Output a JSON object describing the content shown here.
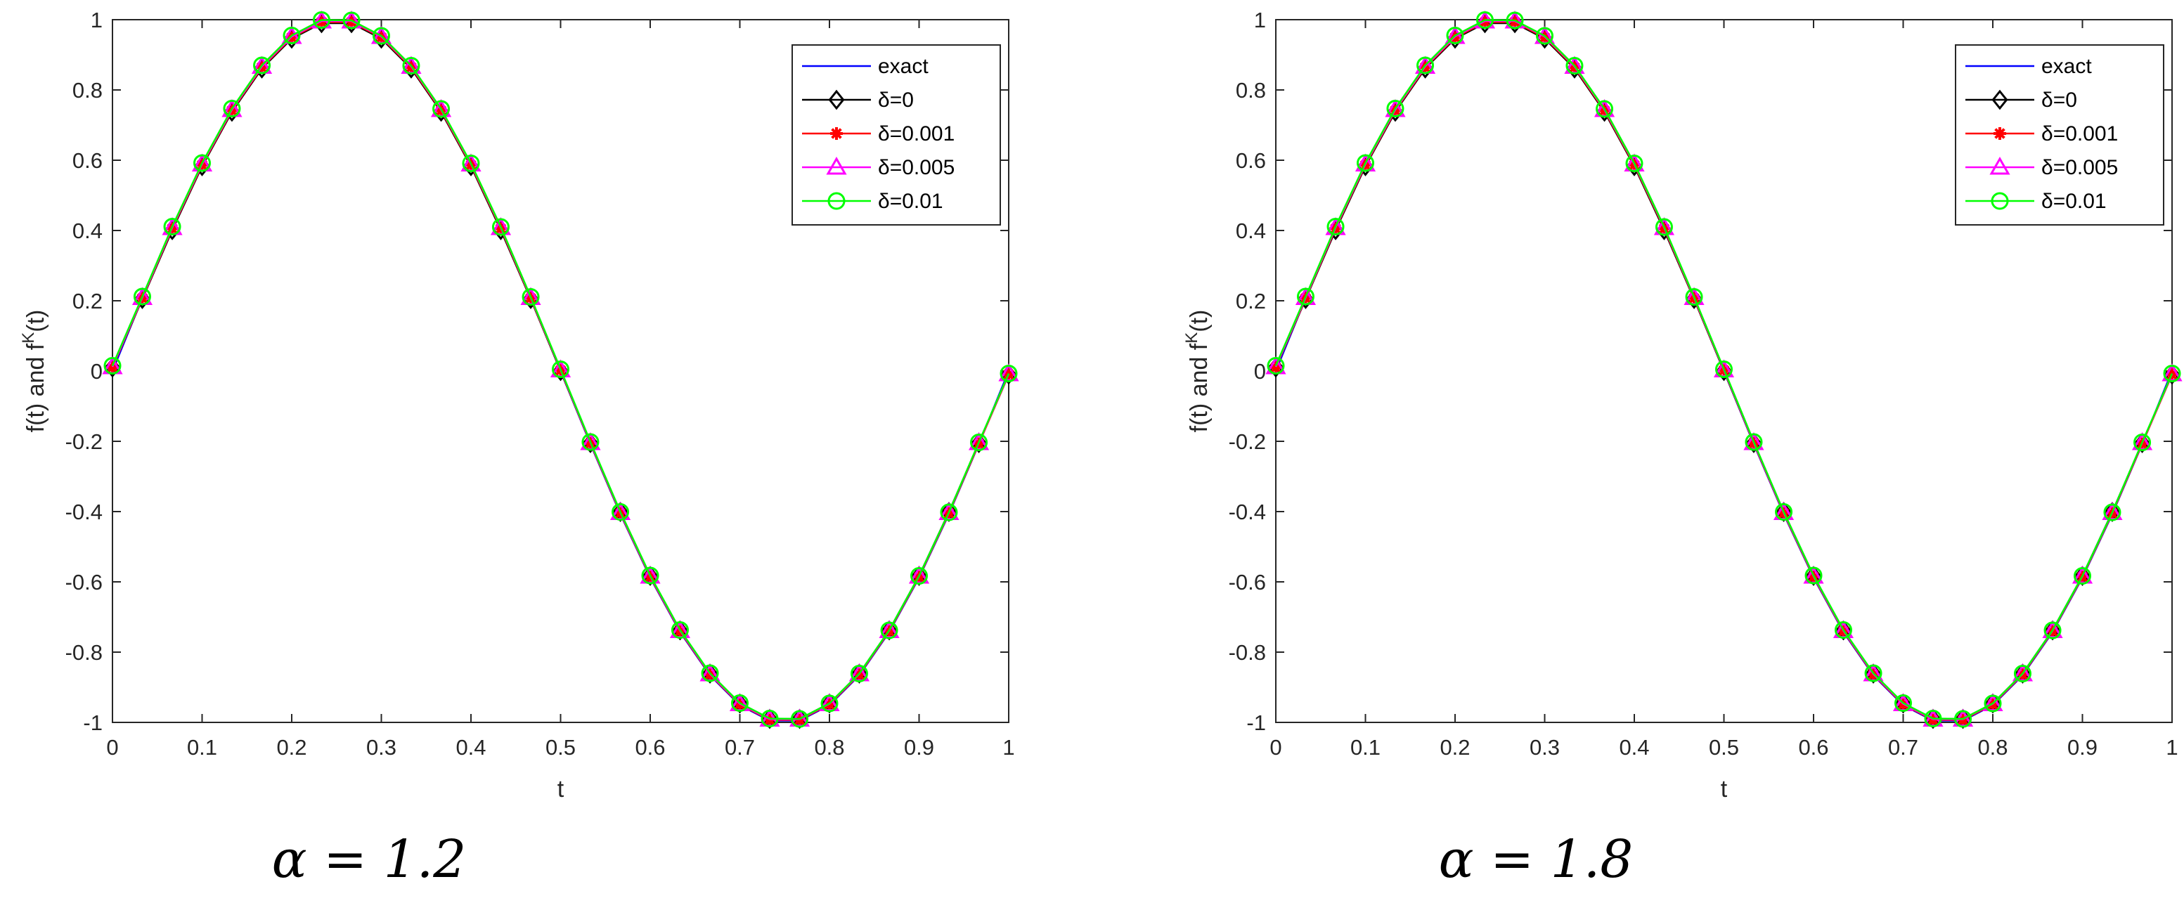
{
  "chart_data": [
    {
      "type": "line",
      "caption": "α = 1.2",
      "xlabel": "t",
      "ylabel": "f(t) and f^K(t)",
      "ylabel_main": "f(t) and f",
      "ylabel_sup": "K",
      "ylabel_tail": "(t)",
      "xlim": [
        0,
        1
      ],
      "ylim": [
        -1,
        1
      ],
      "xticks": [
        0,
        0.1,
        0.2,
        0.3,
        0.4,
        0.5,
        0.6,
        0.7,
        0.8,
        0.9,
        1
      ],
      "xtick_labels": [
        "0",
        "0.1",
        "0.2",
        "0.3",
        "0.4",
        "0.5",
        "0.6",
        "0.7",
        "0.8",
        "0.9",
        "1"
      ],
      "yticks": [
        -1,
        -0.8,
        -0.6,
        -0.4,
        -0.2,
        0,
        0.2,
        0.4,
        0.6,
        0.8,
        1
      ],
      "ytick_labels": [
        "-1",
        "-0.8",
        "-0.6",
        "-0.4",
        "-0.2",
        "0",
        "0.2",
        "0.4",
        "0.6",
        "0.8",
        "1"
      ],
      "grid": false,
      "legend_position": "top-right",
      "x": [
        0,
        0.0333,
        0.0667,
        0.1,
        0.1333,
        0.1667,
        0.2,
        0.2333,
        0.2667,
        0.3,
        0.3333,
        0.3667,
        0.4,
        0.4333,
        0.4667,
        0.5,
        0.5333,
        0.5667,
        0.6,
        0.6333,
        0.6667,
        0.7,
        0.7333,
        0.7667,
        0.8,
        0.8333,
        0.8667,
        0.9,
        0.9333,
        0.9667,
        1
      ],
      "series": [
        {
          "name": "exact",
          "color": "#0000ff",
          "marker": "none",
          "values": [
            0,
            0.208,
            0.407,
            0.588,
            0.743,
            0.866,
            0.951,
            0.995,
            0.995,
            0.951,
            0.866,
            0.743,
            0.588,
            0.407,
            0.208,
            0,
            -0.208,
            -0.407,
            -0.588,
            -0.743,
            -0.866,
            -0.951,
            -0.995,
            -0.995,
            -0.951,
            -0.866,
            -0.743,
            -0.588,
            -0.407,
            -0.208,
            0
          ]
        },
        {
          "name": "δ=0",
          "color": "#000000",
          "marker": "diamond",
          "values": [
            0.01,
            0.205,
            0.401,
            0.583,
            0.738,
            0.861,
            0.946,
            0.99,
            0.99,
            0.946,
            0.861,
            0.738,
            0.583,
            0.401,
            0.205,
            0,
            -0.205,
            -0.401,
            -0.583,
            -0.738,
            -0.861,
            -0.946,
            -0.99,
            -0.99,
            -0.946,
            -0.861,
            -0.738,
            -0.583,
            -0.401,
            -0.205,
            -0.01
          ]
        },
        {
          "name": "δ=0.001",
          "color": "#ff0000",
          "marker": "star",
          "values": [
            0.01,
            0.207,
            0.405,
            0.586,
            0.741,
            0.864,
            0.949,
            0.993,
            0.993,
            0.949,
            0.864,
            0.741,
            0.586,
            0.405,
            0.207,
            0.002,
            -0.206,
            -0.405,
            -0.586,
            -0.741,
            -0.864,
            -0.949,
            -0.993,
            -0.993,
            -0.949,
            -0.864,
            -0.741,
            -0.586,
            -0.405,
            -0.207,
            -0.01
          ]
        },
        {
          "name": "δ=0.005",
          "color": "#ff00ff",
          "marker": "triangle",
          "values": [
            0.012,
            0.209,
            0.408,
            0.589,
            0.744,
            0.867,
            0.952,
            0.996,
            0.996,
            0.952,
            0.867,
            0.744,
            0.589,
            0.408,
            0.209,
            0.003,
            -0.204,
            -0.403,
            -0.584,
            -0.739,
            -0.862,
            -0.947,
            -0.991,
            -0.991,
            -0.947,
            -0.862,
            -0.739,
            -0.584,
            -0.403,
            -0.204,
            -0.008
          ]
        },
        {
          "name": "δ=0.01",
          "color": "#00ff00",
          "marker": "circle",
          "values": [
            0.015,
            0.212,
            0.411,
            0.592,
            0.747,
            0.87,
            0.955,
            0.999,
            0.998,
            0.954,
            0.869,
            0.746,
            0.591,
            0.41,
            0.211,
            0.005,
            -0.202,
            -0.401,
            -0.582,
            -0.737,
            -0.86,
            -0.945,
            -0.989,
            -0.99,
            -0.946,
            -0.861,
            -0.738,
            -0.583,
            -0.402,
            -0.203,
            -0.007
          ]
        }
      ]
    },
    {
      "type": "line",
      "caption": "α = 1.8",
      "xlabel": "t",
      "ylabel": "f(t) and f^K(t)",
      "ylabel_main": "f(t) and f",
      "ylabel_sup": "K",
      "ylabel_tail": "(t)",
      "xlim": [
        0,
        1
      ],
      "ylim": [
        -1,
        1
      ],
      "xticks": [
        0,
        0.1,
        0.2,
        0.3,
        0.4,
        0.5,
        0.6,
        0.7,
        0.8,
        0.9,
        1
      ],
      "xtick_labels": [
        "0",
        "0.1",
        "0.2",
        "0.3",
        "0.4",
        "0.5",
        "0.6",
        "0.7",
        "0.8",
        "0.9",
        "1"
      ],
      "yticks": [
        -1,
        -0.8,
        -0.6,
        -0.4,
        -0.2,
        0,
        0.2,
        0.4,
        0.6,
        0.8,
        1
      ],
      "ytick_labels": [
        "-1",
        "-0.8",
        "-0.6",
        "-0.4",
        "-0.2",
        "0",
        "0.2",
        "0.4",
        "0.6",
        "0.8",
        "1"
      ],
      "grid": false,
      "legend_position": "top-right",
      "x": [
        0,
        0.0333,
        0.0667,
        0.1,
        0.1333,
        0.1667,
        0.2,
        0.2333,
        0.2667,
        0.3,
        0.3333,
        0.3667,
        0.4,
        0.4333,
        0.4667,
        0.5,
        0.5333,
        0.5667,
        0.6,
        0.6333,
        0.6667,
        0.7,
        0.7333,
        0.7667,
        0.8,
        0.8333,
        0.8667,
        0.9,
        0.9333,
        0.9667,
        1
      ],
      "series": [
        {
          "name": "exact",
          "color": "#0000ff",
          "marker": "none",
          "values": [
            0,
            0.208,
            0.407,
            0.588,
            0.743,
            0.866,
            0.951,
            0.995,
            0.995,
            0.951,
            0.866,
            0.743,
            0.588,
            0.407,
            0.208,
            0,
            -0.208,
            -0.407,
            -0.588,
            -0.743,
            -0.866,
            -0.951,
            -0.995,
            -0.995,
            -0.951,
            -0.866,
            -0.743,
            -0.588,
            -0.407,
            -0.208,
            0
          ]
        },
        {
          "name": "δ=0",
          "color": "#000000",
          "marker": "diamond",
          "values": [
            0.01,
            0.205,
            0.401,
            0.583,
            0.738,
            0.861,
            0.946,
            0.99,
            0.99,
            0.946,
            0.861,
            0.738,
            0.583,
            0.401,
            0.205,
            0,
            -0.205,
            -0.401,
            -0.583,
            -0.738,
            -0.861,
            -0.946,
            -0.99,
            -0.99,
            -0.946,
            -0.861,
            -0.738,
            -0.583,
            -0.401,
            -0.205,
            -0.01
          ]
        },
        {
          "name": "δ=0.001",
          "color": "#ff0000",
          "marker": "star",
          "values": [
            0.01,
            0.207,
            0.405,
            0.586,
            0.741,
            0.864,
            0.949,
            0.993,
            0.993,
            0.949,
            0.864,
            0.741,
            0.586,
            0.405,
            0.207,
            0.002,
            -0.206,
            -0.405,
            -0.586,
            -0.741,
            -0.864,
            -0.949,
            -0.993,
            -0.993,
            -0.949,
            -0.864,
            -0.741,
            -0.586,
            -0.405,
            -0.207,
            -0.01
          ]
        },
        {
          "name": "δ=0.005",
          "color": "#ff00ff",
          "marker": "triangle",
          "values": [
            0.012,
            0.209,
            0.408,
            0.589,
            0.744,
            0.867,
            0.952,
            0.996,
            0.996,
            0.952,
            0.867,
            0.744,
            0.589,
            0.408,
            0.209,
            0.003,
            -0.204,
            -0.403,
            -0.584,
            -0.739,
            -0.862,
            -0.947,
            -0.991,
            -0.991,
            -0.947,
            -0.862,
            -0.739,
            -0.584,
            -0.403,
            -0.204,
            -0.008
          ]
        },
        {
          "name": "δ=0.01",
          "color": "#00ff00",
          "marker": "circle",
          "values": [
            0.015,
            0.212,
            0.411,
            0.592,
            0.747,
            0.87,
            0.955,
            0.999,
            0.998,
            0.954,
            0.869,
            0.746,
            0.591,
            0.41,
            0.211,
            0.005,
            -0.202,
            -0.401,
            -0.582,
            -0.737,
            -0.86,
            -0.945,
            -0.989,
            -0.99,
            -0.946,
            -0.861,
            -0.738,
            -0.583,
            -0.402,
            -0.203,
            -0.007
          ]
        }
      ]
    }
  ]
}
